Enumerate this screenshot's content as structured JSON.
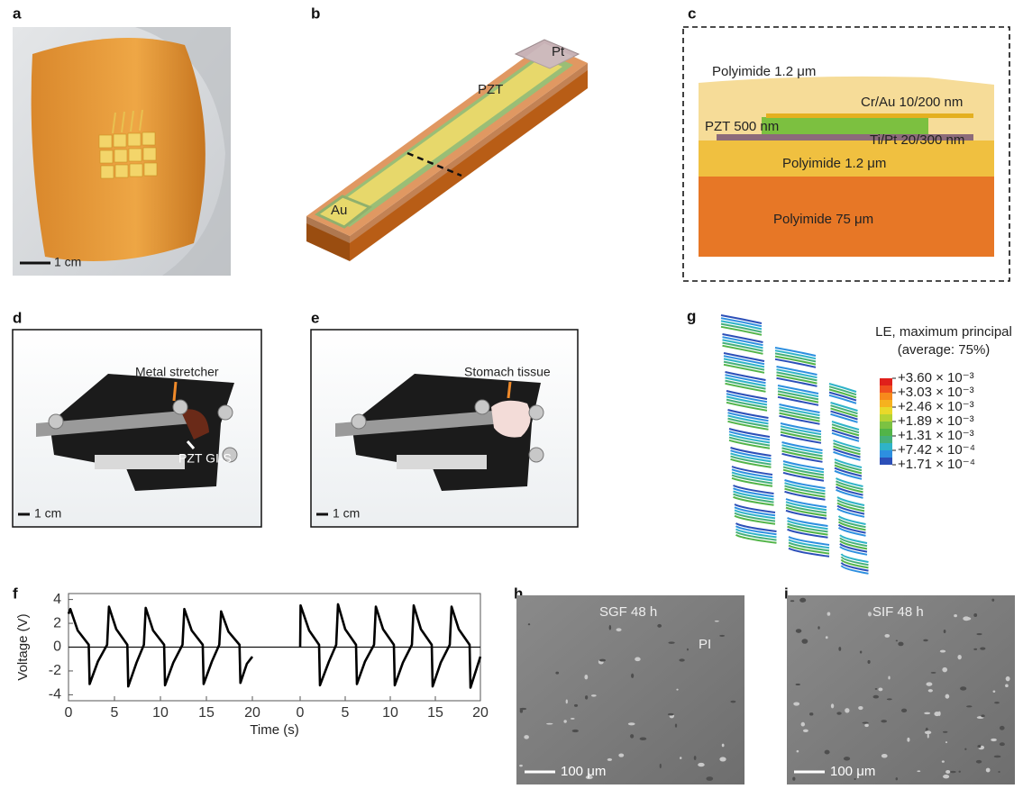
{
  "panels": {
    "a": {
      "label": "a",
      "scale_bar": "1 cm"
    },
    "b": {
      "label": "b",
      "pt": "Pt",
      "pzt": "PZT",
      "au": "Au"
    },
    "c": {
      "label": "c",
      "layers": [
        "Polyimide 1.2 μm",
        "Cr/Au 10/200 nm",
        "PZT 500 nm",
        "Ti/Pt 20/300 nm",
        "Polyimide 1.2 μm",
        "Polyimide 75 μm"
      ]
    },
    "d": {
      "label": "d",
      "callout_top": "Metal stretcher",
      "callout_bottom": "PZT GI-S",
      "scale_bar": "1 cm"
    },
    "e": {
      "label": "e",
      "callout": "Stomach tissue",
      "scale_bar": "1 cm"
    },
    "f": {
      "label": "f"
    },
    "g": {
      "label": "g",
      "title": "LE, maximum principal",
      "subtitle": "(average: 75%)",
      "colorbar_labels": [
        "+3.60 × 10⁻³",
        "+3.03 × 10⁻³",
        "+2.46 × 10⁻³",
        "+1.89 × 10⁻³",
        "+1.31 × 10⁻³",
        "+7.42 × 10⁻⁴",
        "+1.71 × 10⁻⁴"
      ],
      "colorbar_colors": [
        "#e0201b",
        "#f0501e",
        "#f78a1c",
        "#f6b21e",
        "#e9d92a",
        "#b5d334",
        "#7cc242",
        "#52b448",
        "#45b07a",
        "#2fb3c8",
        "#2d8fe0",
        "#2c4fb8"
      ]
    },
    "h": {
      "label": "h",
      "caption": "SGF 48 h",
      "tag": "PI",
      "scale_bar": "100 μm"
    },
    "i": {
      "label": "i",
      "caption": "SIF 48 h",
      "scale_bar": "100 μm"
    }
  },
  "chart_data": [
    {
      "type": "line",
      "ylabel": "Voltage (V)",
      "xlabel": "Time (s)",
      "color": "#000000",
      "zero_line": true,
      "x": [
        0,
        0.2,
        1.0,
        2.2,
        2.3,
        3.2,
        4.2,
        4.4,
        5.2,
        6.4,
        6.5,
        7.4,
        8.2,
        8.4,
        9.2,
        10.4,
        10.5,
        11.4,
        12.4,
        12.6,
        13.4,
        14.6,
        14.7,
        15.6,
        16.4,
        16.6,
        17.4,
        18.6,
        18.7,
        19.4,
        20
      ],
      "values": [
        2.8,
        3.2,
        1.4,
        0.2,
        -3.1,
        -1.2,
        0.2,
        3.4,
        1.5,
        0.2,
        -3.3,
        -1.3,
        0.2,
        3.3,
        1.4,
        0.2,
        -3.2,
        -1.3,
        0.2,
        3.2,
        1.4,
        0.2,
        -3.1,
        -1.2,
        0.2,
        3.0,
        1.3,
        0.2,
        -3.0,
        -1.4,
        -0.8
      ],
      "xlim": [
        0,
        20
      ],
      "xticks": [
        0,
        5,
        10,
        15,
        20
      ],
      "ylim": [
        -4.5,
        4.5
      ],
      "yticks": [
        -4,
        -2,
        0,
        2,
        4
      ]
    },
    {
      "type": "line",
      "color": "#000000",
      "x": [
        0,
        0.05,
        1.0,
        2.1,
        2.2,
        3.2,
        4.0,
        4.2,
        5.0,
        6.2,
        6.3,
        7.2,
        8.2,
        8.4,
        9.2,
        10.4,
        10.5,
        11.4,
        12.4,
        12.6,
        13.4,
        14.6,
        14.7,
        15.6,
        16.6,
        16.8,
        17.6,
        18.8,
        18.9,
        20
      ],
      "values": [
        0,
        3.5,
        1.4,
        0.2,
        -3.2,
        -1.2,
        0.2,
        3.6,
        1.5,
        0.2,
        -3.1,
        -1.2,
        0.2,
        3.4,
        1.5,
        0.2,
        -3.2,
        -1.3,
        0.2,
        3.5,
        1.5,
        0.2,
        -3.3,
        -1.3,
        0.2,
        3.4,
        1.5,
        0.2,
        -3.4,
        -0.8
      ],
      "xlim": [
        0,
        20
      ],
      "xticks": [
        0,
        5,
        10,
        15,
        20
      ],
      "ylim": [
        -4.5,
        4.5
      ]
    }
  ]
}
